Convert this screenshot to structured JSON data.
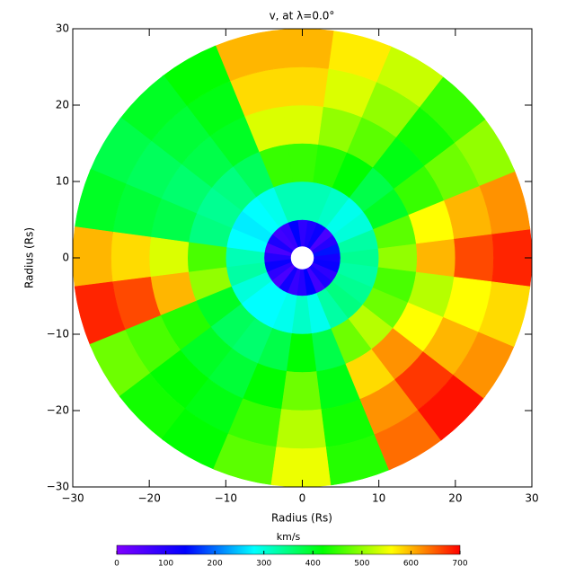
{
  "chart_data": {
    "type": "polar-heatmap",
    "title": "v, at λ=0.0°",
    "xlabel": "Radius (Rs)",
    "ylabel": "Radius (Rs)",
    "xlim": [
      -30,
      30
    ],
    "ylim": [
      -30,
      30
    ],
    "xticks": [
      {
        "value": -30,
        "label": "−30"
      },
      {
        "value": -20,
        "label": "−20"
      },
      {
        "value": -10,
        "label": "−10"
      },
      0,
      10,
      20,
      30
    ],
    "yticks": [
      {
        "value": -30,
        "label": "−30"
      },
      {
        "value": -20,
        "label": "−20"
      },
      {
        "value": -10,
        "label": "−10"
      },
      0,
      10,
      20,
      30
    ],
    "theta": [
      0,
      15,
      30,
      45,
      60,
      75,
      90,
      105,
      120,
      135,
      150,
      165,
      180,
      195,
      210,
      225,
      240,
      255,
      270,
      285,
      300,
      315,
      330,
      345
    ],
    "r_edges": [
      1.5,
      5,
      10,
      15,
      20,
      25,
      30
    ],
    "values": [
      [
        120,
        150,
        100,
        60,
        130,
        110,
        90,
        140,
        80,
        70,
        110,
        60,
        100,
        130,
        90,
        60,
        120,
        80,
        100,
        140,
        70,
        110,
        90,
        130
      ],
      [
        340,
        330,
        300,
        290,
        310,
        320,
        320,
        320,
        290,
        280,
        270,
        280,
        320,
        330,
        300,
        280,
        280,
        290,
        310,
        290,
        330,
        350,
        340,
        330
      ],
      [
        500,
        470,
        400,
        380,
        420,
        440,
        450,
        450,
        370,
        350,
        340,
        350,
        460,
        500,
        400,
        370,
        360,
        380,
        420,
        380,
        480,
        520,
        480,
        460
      ],
      [
        600,
        560,
        450,
        410,
        470,
        500,
        540,
        540,
        400,
        380,
        360,
        380,
        540,
        600,
        440,
        400,
        390,
        420,
        480,
        410,
        580,
        620,
        560,
        520
      ],
      [
        660,
        600,
        480,
        430,
        500,
        540,
        580,
        580,
        410,
        390,
        370,
        390,
        580,
        660,
        460,
        420,
        410,
        450,
        520,
        430,
        620,
        670,
        600,
        560
      ],
      [
        680,
        620,
        500,
        450,
        530,
        570,
        600,
        600,
        420,
        400,
        380,
        400,
        600,
        680,
        480,
        430,
        420,
        470,
        550,
        440,
        640,
        690,
        620,
        580
      ]
    ],
    "colorbar": {
      "label": "km/s",
      "clim": [
        0,
        700
      ],
      "ticks": [
        0,
        100,
        200,
        300,
        400,
        500,
        600,
        700
      ]
    },
    "colormap": [
      "#7f00ff",
      "#0000ff",
      "#00ffff",
      "#00ff00",
      "#ffff00",
      "#ff0000"
    ]
  }
}
